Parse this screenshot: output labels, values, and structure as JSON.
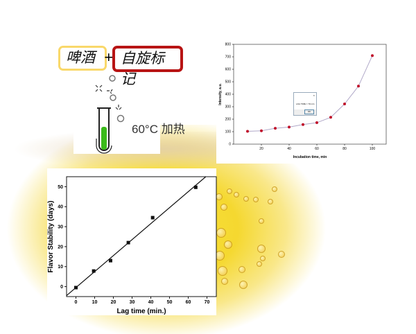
{
  "labels": {
    "beer": "啤酒",
    "plus": "+",
    "spin_label": "自旋标记",
    "heating": "60°C 加热"
  },
  "colors": {
    "beer_box": "#f9d86a",
    "spin_box": "#b81414",
    "tube_liquid": "#3bbb1a",
    "marker_top": "#c0102a",
    "curve_top": "#b0a8c8"
  },
  "dialog": {
    "text": "LAG TIME = 70 min",
    "ok": "OK"
  },
  "chart_data": [
    {
      "type": "line",
      "xlabel": "Incubation time, min",
      "ylabel": "Intensity, a.u.",
      "xlim": [
        0,
        110
      ],
      "ylim": [
        0,
        800
      ],
      "xticks": [
        20,
        40,
        60,
        80,
        100
      ],
      "yticks": [
        0,
        100,
        200,
        300,
        400,
        500,
        600,
        700,
        800
      ],
      "x": [
        10,
        20,
        30,
        40,
        50,
        60,
        70,
        80,
        90,
        100
      ],
      "y": [
        103,
        107,
        127,
        137,
        157,
        172,
        215,
        322,
        465,
        710
      ]
    },
    {
      "type": "scatter",
      "xlabel": "Lag time (min.)",
      "ylabel": "Flavor Stability (days)",
      "xlim": [
        -5,
        75
      ],
      "ylim": [
        -5,
        55
      ],
      "xticks": [
        0,
        10,
        20,
        30,
        40,
        50,
        60,
        70
      ],
      "yticks": [
        0,
        10,
        20,
        30,
        40,
        50
      ],
      "x": [
        0,
        9.5,
        18.5,
        28,
        41,
        64
      ],
      "y": [
        -0.5,
        7.8,
        13,
        22,
        34.5,
        49.7
      ],
      "fit_line": {
        "slope": 0.8,
        "intercept": -0.5
      }
    }
  ]
}
